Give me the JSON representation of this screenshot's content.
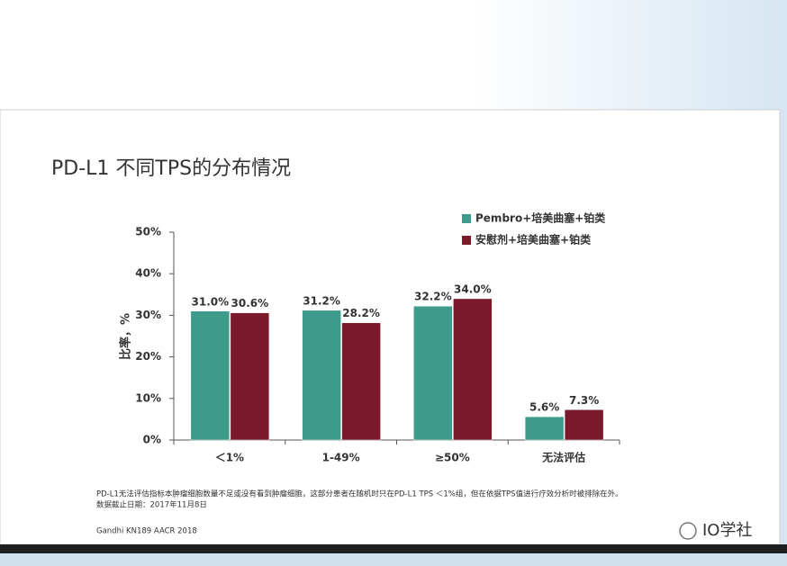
{
  "chart_data": {
    "type": "bar",
    "title": "PD-L1 不同TPS的分布情况",
    "ylabel": "比率，%",
    "categories": [
      "＜1%",
      "1-49%",
      "≥50%",
      "无法评估"
    ],
    "series": [
      {
        "name": "Pembro+培美曲塞+铂类",
        "color": "#3e9a8b",
        "values": [
          31.0,
          31.2,
          32.2,
          5.6
        ],
        "value_labels": [
          "31.0%",
          "31.2%",
          "32.2%",
          "5.6%"
        ]
      },
      {
        "name": "安慰剂+培美曲塞+铂类",
        "color": "#7a1a2b",
        "values": [
          30.6,
          28.2,
          34.0,
          7.3
        ],
        "value_labels": [
          "30.6%",
          "28.2%",
          "34.0%",
          "7.3%"
        ]
      }
    ],
    "ylim": [
      0,
      50
    ],
    "yticks": [
      {
        "value": 0,
        "label": "0%"
      },
      {
        "value": 10,
        "label": "10%"
      },
      {
        "value": 20,
        "label": "20%"
      },
      {
        "value": 30,
        "label": "30%"
      },
      {
        "value": 40,
        "label": "40%"
      },
      {
        "value": 50,
        "label": "50%"
      }
    ],
    "legend": "top-right",
    "notes": [
      "PD-L1无法评估指标本肿瘤细胞数量不足或没有看到肿瘤细胞，这部分患者在随机时只在PD-L1 TPS ＜1%组，但在依据TPS值进行疗效分析时被排除在外。",
      "数据截止日期：2017年11月8日"
    ],
    "source": "Gandhi KN189 AACR 2018",
    "watermark": "IO学社"
  }
}
